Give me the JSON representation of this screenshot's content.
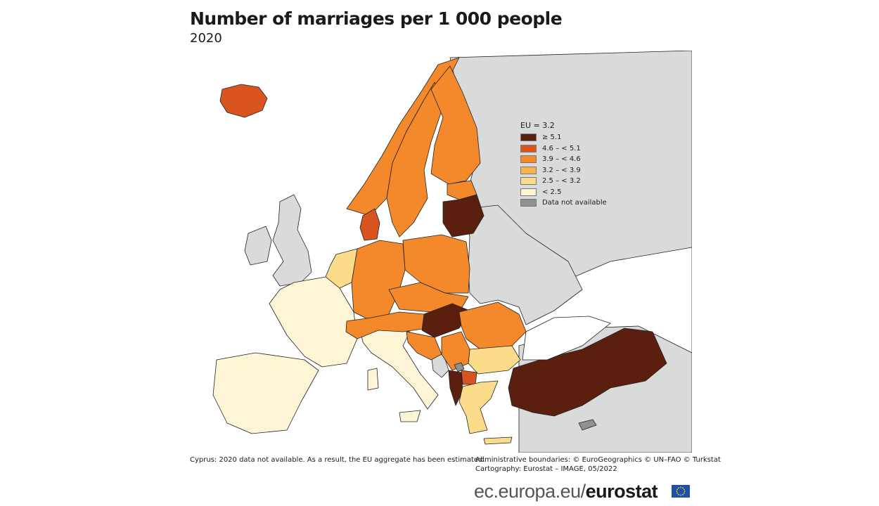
{
  "title": "Number of marriages per 1 000 people",
  "subtitle": "2020",
  "legend": {
    "header": "EU = 3.2",
    "items": [
      {
        "label": "≥ 5.1",
        "color": "#5b1f10"
      },
      {
        "label": "4.6 – < 5.1",
        "color": "#d9541e"
      },
      {
        "label": "3.9 – < 4.6",
        "color": "#f3892a"
      },
      {
        "label": "3.2 – < 3.9",
        "color": "#f6b54c"
      },
      {
        "label": "2.5 – < 3.2",
        "color": "#fbdc8a"
      },
      {
        "label": "< 2.5",
        "color": "#fdf5d5"
      },
      {
        "label": "Data not available",
        "color": "#8f9090"
      }
    ]
  },
  "colors": {
    "non_eu": "#d9dada",
    "sea": "#ffffff",
    "border": "#222222"
  },
  "regions": [
    {
      "name": "iceland",
      "class": "≥ 4.6 – < 5.1",
      "color": "#d9541e"
    },
    {
      "name": "norway",
      "color": "#f6b54c"
    },
    {
      "name": "sweden",
      "color": "#f6b54c"
    },
    {
      "name": "finland",
      "color": "#f3892a"
    },
    {
      "name": "estonia",
      "color": "#f3892a"
    },
    {
      "name": "latvia-lithuania",
      "color": "#5b1f10"
    },
    {
      "name": "denmark",
      "color": "#d9541e"
    },
    {
      "name": "poland",
      "color": "#f6b54c"
    },
    {
      "name": "germany",
      "color": "#f3892a"
    },
    {
      "name": "benelux",
      "color": "#fbdc8a"
    },
    {
      "name": "france",
      "color": "#fdf5d5"
    },
    {
      "name": "iberia",
      "color": "#fdf5d5"
    },
    {
      "name": "italy",
      "color": "#fdf5d5"
    },
    {
      "name": "switzerland-austria",
      "color": "#f3892a"
    },
    {
      "name": "czechia-slovakia",
      "color": "#f3892a"
    },
    {
      "name": "hungary",
      "color": "#5b1f10"
    },
    {
      "name": "romania",
      "color": "#f3892a"
    },
    {
      "name": "bulgaria",
      "color": "#fbdc8a"
    },
    {
      "name": "serbia",
      "color": "#f6b54c"
    },
    {
      "name": "croatia-bosnia",
      "color": "#f6b54c"
    },
    {
      "name": "north-macedonia",
      "color": "#d9541e"
    },
    {
      "name": "albania-montenegro",
      "color": "#5b1f10"
    },
    {
      "name": "greece",
      "color": "#fbdc8a"
    },
    {
      "name": "turkey",
      "color": "#5b1f10"
    },
    {
      "name": "kosovo",
      "color": "#8f9090"
    },
    {
      "name": "cyprus",
      "color": "#8f9090"
    }
  ],
  "notes": {
    "left": "Cyprus: 2020 data not available. As a result, the EU aggregate has been estimated.",
    "right_line1": "Administrative boundaries: © EuroGeographics © UN–FAO © Turkstat",
    "right_line2": "Cartography: Eurostat – IMAGE, 05/2022"
  },
  "brand": {
    "prefix": "ec.europa.eu/",
    "name": "eurostat"
  }
}
